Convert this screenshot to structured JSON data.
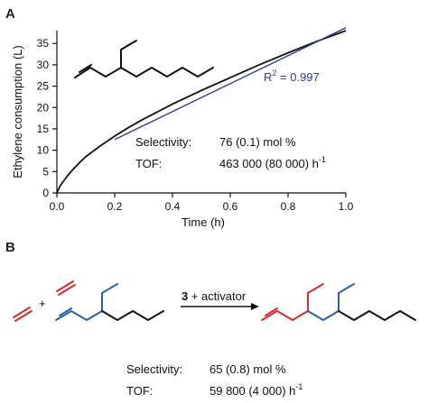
{
  "panel_a": {
    "letter": "A",
    "stats": {
      "selectivity_label": "Selectivity:",
      "selectivity_value": "76  (0.1) mol %",
      "tof_label": "TOF:",
      "tof_value": "463 000 (80 000) h",
      "tof_exponent": "-1"
    },
    "fit": {
      "label": "R",
      "exponent": "2",
      "value": " = 0.997",
      "color": "#2d3f8f"
    }
  },
  "panel_b": {
    "letter": "B",
    "plus": "+",
    "arrow_reagent_bold": "3",
    "arrow_reagent_text": " + activator",
    "stats": {
      "selectivity_label": "Selectivity:",
      "selectivity_value": "65  (0.8) mol %",
      "tof_label": "TOF:",
      "tof_value": "59 800 (4 000) h",
      "tof_exponent": "-1"
    },
    "colors": {
      "ethylene": "#d42a2a",
      "substrate": "#2e5ea8",
      "bond": "#111111"
    }
  },
  "chart_data": {
    "type": "line",
    "xlabel": "Time (h)",
    "ylabel": "Ethylene consumption (L)",
    "xlim": [
      0,
      1.0
    ],
    "ylim": [
      0,
      38
    ],
    "xticks": [
      "0.0",
      "0.2",
      "0.4",
      "0.6",
      "0.8",
      "1.0"
    ],
    "yticks": [
      "0",
      "5",
      "10",
      "15",
      "20",
      "25",
      "30",
      "35"
    ],
    "grid": false,
    "series": [
      {
        "x": [
          0,
          0.01,
          0.02,
          0.04,
          0.06,
          0.08,
          0.1,
          0.15,
          0.2,
          0.25,
          0.3,
          0.4,
          0.5,
          0.6,
          0.7,
          0.8,
          0.9,
          1.0
        ],
        "y": [
          0,
          1.5,
          2.5,
          4.3,
          5.8,
          7.2,
          8.5,
          11.0,
          13.3,
          15.4,
          17.3,
          20.8,
          24.0,
          27.0,
          30.0,
          32.8,
          35.5,
          38.0
        ],
        "color": "#111111"
      },
      {
        "x": [
          0.2,
          1.0
        ],
        "y": [
          12.5,
          38.7
        ],
        "color": "#2d3f8f"
      }
    ]
  }
}
